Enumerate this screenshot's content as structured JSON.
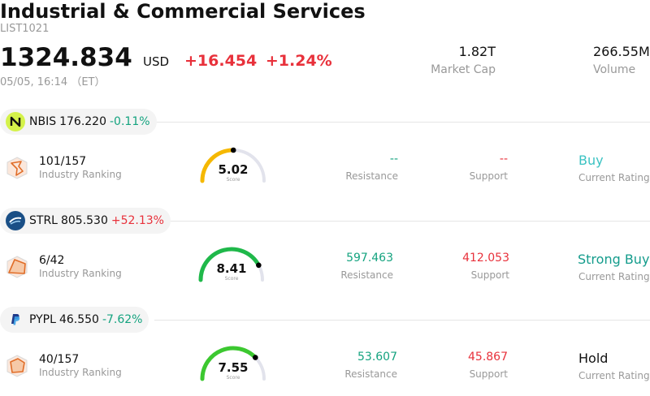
{
  "header": {
    "title": "Industrial & Commercial Services",
    "code": "LIST1021",
    "price": "1324.834",
    "currency": "USD",
    "change": "+16.454",
    "change_pct": "+1.24%",
    "timestamp": "05/05, 16:14 （ET）",
    "market_cap": {
      "value": "1.82T",
      "label": "Market Cap"
    },
    "volume": {
      "value": "266.55M",
      "label": "Volume"
    }
  },
  "stocks": [
    {
      "symbol": "NBIS",
      "price": "176.220",
      "change_pct": "-0.11%",
      "change_color": "#14a37f",
      "logo_icon": "nbis-logo-icon",
      "ranking": "101/157",
      "ranking_label": "Industry Ranking",
      "score": "5.02",
      "score_fraction": 0.502,
      "score_label": "Score",
      "gauge_color": "#f5b800",
      "resistance": "--",
      "resistance_label": "Resistance",
      "support": "--",
      "support_label": "Support",
      "rating": "Buy",
      "rating_color": "#3cc3c3",
      "rating_label": "Current Rating"
    },
    {
      "symbol": "STRL",
      "price": "805.530",
      "change_pct": "+52.13%",
      "change_color": "#e8313b",
      "logo_icon": "strl-logo-icon",
      "ranking": "6/42",
      "ranking_label": "Industry Ranking",
      "score": "8.41",
      "score_fraction": 0.841,
      "score_label": "Score",
      "gauge_color": "#1fb84a",
      "resistance": "597.463",
      "resistance_label": "Resistance",
      "support": "412.053",
      "support_label": "Support",
      "rating": "Strong Buy",
      "rating_color": "#149c8c",
      "rating_label": "Current Rating"
    },
    {
      "symbol": "PYPL",
      "price": "46.550",
      "change_pct": "-7.62%",
      "change_color": "#14a37f",
      "logo_icon": "pypl-logo-icon",
      "ranking": "40/157",
      "ranking_label": "Industry Ranking",
      "score": "7.55",
      "score_fraction": 0.755,
      "score_label": "Score",
      "gauge_color": "#3cc830",
      "resistance": "53.607",
      "resistance_label": "Resistance",
      "support": "45.867",
      "support_label": "Support",
      "rating": "Hold",
      "rating_color": "#111111",
      "rating_label": "Current Rating"
    }
  ],
  "colors": {
    "up": "#e8313b",
    "down": "#14a37f",
    "resistance": "#14a37f",
    "support": "#e8313b"
  }
}
